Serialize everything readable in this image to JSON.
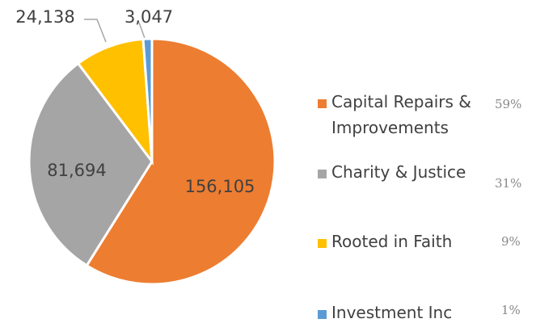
{
  "chart_data": {
    "type": "pie",
    "categories": [
      "Capital Repairs & Improvements",
      "Charity & Justice",
      "Rooted in Faith",
      "Investment Inc"
    ],
    "values": [
      156105,
      81694,
      24138,
      3047
    ],
    "value_labels": [
      "156,105",
      "81,694",
      "24,138",
      "3,047"
    ],
    "percent_labels": [
      "59%",
      "31%",
      "9%",
      "1%"
    ],
    "colors": [
      "#ed7d31",
      "#a5a5a5",
      "#ffc000",
      "#5b9bd5"
    ]
  }
}
